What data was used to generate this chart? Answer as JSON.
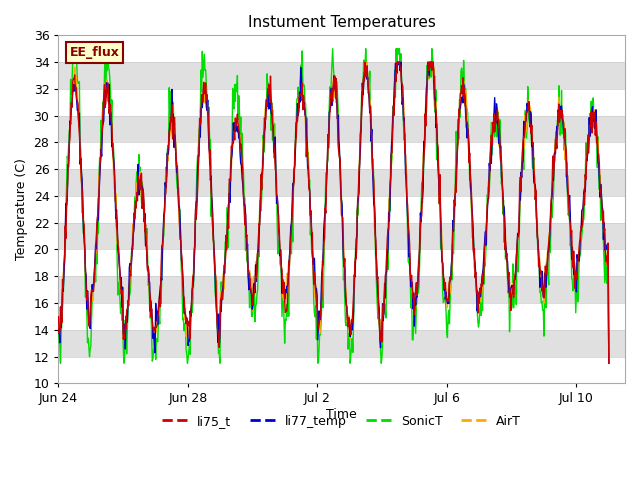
{
  "title": "Instument Temperatures",
  "xlabel": "Time",
  "ylabel": "Temperature (C)",
  "ylim": [
    10,
    36
  ],
  "yticks": [
    10,
    12,
    14,
    16,
    18,
    20,
    22,
    24,
    26,
    28,
    30,
    32,
    34,
    36
  ],
  "plot_bg_color": "#e0e0e0",
  "line_colors": {
    "li75_t": "#cc0000",
    "li77_temp": "#0000cc",
    "SonicT": "#00dd00",
    "AirT": "#ffaa00"
  },
  "annotation_text": "EE_flux",
  "annotation_bg": "#ffffcc",
  "annotation_border": "#8b0000",
  "xtick_dates": [
    "Jun 24",
    "Jun 28",
    "Jul 2",
    "Jul 6",
    "Jul 10"
  ],
  "xtick_positions": [
    0,
    4,
    8,
    12,
    16
  ],
  "xlim": [
    0,
    17.5
  ],
  "figsize": [
    6.4,
    4.8
  ],
  "dpi": 100
}
